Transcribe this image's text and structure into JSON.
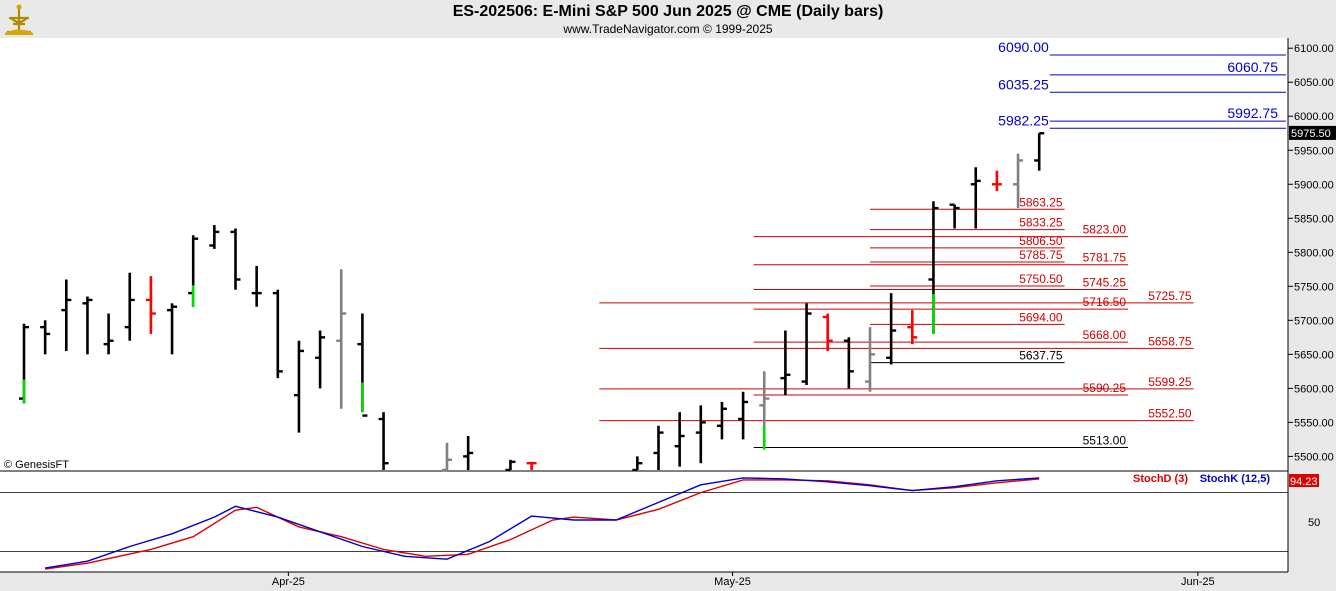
{
  "header": {
    "title": "ES-202506:  E-Mini S&P 500 Jun 2025 @ CME  (Daily bars)",
    "subtitle": "www.TradeNavigator.com © 1999-2025",
    "logo_icon": "navigator-logo-icon"
  },
  "colors": {
    "background": "#ffffff",
    "header_band": "#e9e9e9",
    "axis_panel": "#e8e8e8",
    "bar_up": "#000000",
    "bar_gray": "#808080",
    "bar_red": "#ff0000",
    "bar_green": "#00dd00",
    "level_red": "#cc0000",
    "level_blue": "#0000cc",
    "level_black": "#000000",
    "stoch_d": "#dd0000",
    "stoch_k": "#0000cc"
  },
  "chart_data": {
    "type": "ohlc",
    "title": "ES-202506:  E-Mini S&P 500 Jun 2025 @ CME  (Daily bars)",
    "copyright_label": "© GenesisFT",
    "y_axis": {
      "ylim": [
        5480,
        6115
      ],
      "ticks": [
        "5500.00",
        "5550.00",
        "5600.00",
        "5650.00",
        "5700.00",
        "5750.00",
        "5800.00",
        "5850.00",
        "5900.00",
        "5950.00",
        "6000.00",
        "6050.00",
        "6100.00"
      ],
      "last_price_label": "5975.50",
      "last_price": 5975.5
    },
    "x_axis": {
      "labels": [
        {
          "label": "Apr-25",
          "index": 12.5
        },
        {
          "label": "May-25",
          "index": 33.5
        },
        {
          "label": "Jun-25",
          "index": 55.5
        }
      ],
      "index_range": [
        0,
        61.5
      ]
    },
    "bars": [
      {
        "i": 0,
        "o": 5585,
        "h": 5695,
        "l": 5578,
        "c": 5690,
        "color": "black",
        "vol_tick": "green"
      },
      {
        "i": 1,
        "o": 5690,
        "h": 5700,
        "l": 5650,
        "c": 5680,
        "color": "black"
      },
      {
        "i": 2,
        "o": 5715,
        "h": 5760,
        "l": 5655,
        "c": 5730,
        "color": "black"
      },
      {
        "i": 3,
        "o": 5725,
        "h": 5735,
        "l": 5650,
        "c": 5730,
        "color": "black"
      },
      {
        "i": 4,
        "o": 5665,
        "h": 5710,
        "l": 5650,
        "c": 5670,
        "color": "black"
      },
      {
        "i": 5,
        "o": 5690,
        "h": 5770,
        "l": 5670,
        "c": 5730,
        "color": "black"
      },
      {
        "i": 6,
        "o": 5730,
        "h": 5765,
        "l": 5680,
        "c": 5710,
        "color": "red"
      },
      {
        "i": 7,
        "o": 5715,
        "h": 5725,
        "l": 5650,
        "c": 5720,
        "color": "black"
      },
      {
        "i": 8,
        "o": 5740,
        "h": 5825,
        "l": 5720,
        "c": 5820,
        "color": "black",
        "vol_tick": "green"
      },
      {
        "i": 9,
        "o": 5810,
        "h": 5840,
        "l": 5805,
        "c": 5830,
        "color": "black"
      },
      {
        "i": 10,
        "o": 5830,
        "h": 5835,
        "l": 5745,
        "c": 5760,
        "color": "black"
      },
      {
        "i": 11,
        "o": 5740,
        "h": 5780,
        "l": 5720,
        "c": 5740,
        "color": "black"
      },
      {
        "i": 12,
        "o": 5740,
        "h": 5745,
        "l": 5615,
        "c": 5625,
        "color": "black"
      },
      {
        "i": 13,
        "o": 5590,
        "h": 5670,
        "l": 5535,
        "c": 5655,
        "color": "black"
      },
      {
        "i": 14,
        "o": 5645,
        "h": 5685,
        "l": 5600,
        "c": 5675,
        "color": "black"
      },
      {
        "i": 15,
        "o": 5670,
        "h": 5775,
        "l": 5570,
        "c": 5710,
        "color": "gray"
      },
      {
        "i": 16,
        "o": 5665,
        "h": 5710,
        "l": 5565,
        "c": 5560,
        "color": "black",
        "vol_tick": "green"
      },
      {
        "i": 17,
        "o": 5555,
        "h": 5565,
        "l": 5480,
        "c": 5490,
        "color": "black"
      },
      {
        "i": 20,
        "o": 5480,
        "h": 5520,
        "l": 5480,
        "c": 5495,
        "color": "gray"
      },
      {
        "i": 21,
        "o": 5500,
        "h": 5530,
        "l": 5480,
        "c": 5505,
        "color": "black"
      },
      {
        "i": 23,
        "o": 5480,
        "h": 5495,
        "l": 5480,
        "c": 5492,
        "color": "black"
      },
      {
        "i": 24,
        "o": 5490,
        "h": 5492,
        "l": 5480,
        "c": 5490,
        "color": "red"
      },
      {
        "i": 29,
        "o": 5480,
        "h": 5500,
        "l": 5480,
        "c": 5490,
        "color": "black"
      },
      {
        "i": 30,
        "o": 5505,
        "h": 5545,
        "l": 5480,
        "c": 5535,
        "color": "black"
      },
      {
        "i": 31,
        "o": 5515,
        "h": 5565,
        "l": 5485,
        "c": 5530,
        "color": "black"
      },
      {
        "i": 32,
        "o": 5535,
        "h": 5575,
        "l": 5490,
        "c": 5550,
        "color": "black"
      },
      {
        "i": 33,
        "o": 5545,
        "h": 5580,
        "l": 5525,
        "c": 5570,
        "color": "black"
      },
      {
        "i": 34,
        "o": 5555,
        "h": 5595,
        "l": 5525,
        "c": 5580,
        "color": "black"
      },
      {
        "i": 35,
        "o": 5575,
        "h": 5625,
        "l": 5510,
        "c": 5585,
        "color": "gray",
        "vol_tick": "green"
      },
      {
        "i": 36,
        "o": 5615,
        "h": 5685,
        "l": 5590,
        "c": 5620,
        "color": "black"
      },
      {
        "i": 37,
        "o": 5610,
        "h": 5725,
        "l": 5605,
        "c": 5710,
        "color": "black"
      },
      {
        "i": 38,
        "o": 5705,
        "h": 5710,
        "l": 5655,
        "c": 5670,
        "color": "red"
      },
      {
        "i": 39,
        "o": 5670,
        "h": 5675,
        "l": 5600,
        "c": 5625,
        "color": "black"
      },
      {
        "i": 40,
        "o": 5610,
        "h": 5690,
        "l": 5595,
        "c": 5650,
        "color": "gray"
      },
      {
        "i": 41,
        "o": 5645,
        "h": 5740,
        "l": 5635,
        "c": 5685,
        "color": "black"
      },
      {
        "i": 42,
        "o": 5690,
        "h": 5715,
        "l": 5665,
        "c": 5675,
        "color": "red"
      },
      {
        "i": 43,
        "o": 5760,
        "h": 5875,
        "l": 5680,
        "c": 5865,
        "color": "black",
        "vol_tick": "green"
      },
      {
        "i": 44,
        "o": 5870,
        "h": 5870,
        "l": 5835,
        "c": 5865,
        "color": "black"
      },
      {
        "i": 45,
        "o": 5900,
        "h": 5925,
        "l": 5835,
        "c": 5905,
        "color": "black"
      },
      {
        "i": 46,
        "o": 5900,
        "h": 5920,
        "l": 5890,
        "c": 5900,
        "color": "red"
      },
      {
        "i": 47,
        "o": 5900,
        "h": 5945,
        "l": 5865,
        "c": 5935,
        "color": "gray"
      },
      {
        "i": 48,
        "o": 5935,
        "h": 5975,
        "l": 5920,
        "c": 5975,
        "color": "black"
      }
    ],
    "levels": [
      {
        "value": 6090.0,
        "label": "6090.00",
        "color": "blue",
        "x0": 48.5,
        "x1": 61.5,
        "label_side": "left-start"
      },
      {
        "value": 6060.75,
        "label": "6060.75",
        "color": "blue",
        "x0": 48.5,
        "x1": 61.5,
        "label_side": "right"
      },
      {
        "value": 6035.25,
        "label": "6035.25",
        "color": "blue",
        "x0": 48.5,
        "x1": 61.5,
        "label_side": "left-start"
      },
      {
        "value": 5992.75,
        "label": "5992.75",
        "color": "blue",
        "x0": 48.5,
        "x1": 61.5,
        "label_side": "right"
      },
      {
        "value": 5982.25,
        "label": "5982.25",
        "color": "blue",
        "x0": 48.5,
        "x1": 61.5,
        "label_side": "left-start"
      },
      {
        "value": 5863.25,
        "label": "5863.25",
        "color": "red",
        "x0": 40,
        "x1": 49.2,
        "label_side": "end"
      },
      {
        "value": 5833.25,
        "label": "5833.25",
        "color": "red",
        "x0": 40,
        "x1": 49.2,
        "label_side": "end"
      },
      {
        "value": 5823.0,
        "label": "5823.00",
        "color": "red",
        "x0": 34.5,
        "x1": 52.2,
        "label_side": "end"
      },
      {
        "value": 5806.5,
        "label": "5806.50",
        "color": "red",
        "x0": 40,
        "x1": 49.2,
        "label_side": "end"
      },
      {
        "value": 5785.75,
        "label": "5785.75",
        "color": "red",
        "x0": 40,
        "x1": 49.2,
        "label_side": "end"
      },
      {
        "value": 5781.75,
        "label": "5781.75",
        "color": "red",
        "x0": 34.5,
        "x1": 52.2,
        "label_side": "end"
      },
      {
        "value": 5750.5,
        "label": "5750.50",
        "color": "red",
        "x0": 40,
        "x1": 49.2,
        "label_side": "end"
      },
      {
        "value": 5745.25,
        "label": "5745.25",
        "color": "red",
        "x0": 34.5,
        "x1": 52.2,
        "label_side": "end"
      },
      {
        "value": 5725.75,
        "label": "5725.75",
        "color": "red",
        "x0": 27.2,
        "x1": 55.3,
        "label_side": "end"
      },
      {
        "value": 5716.5,
        "label": "5716.50",
        "color": "red",
        "x0": 34.5,
        "x1": 52.2,
        "label_side": "end"
      },
      {
        "value": 5694.0,
        "label": "5694.00",
        "color": "red",
        "x0": 40,
        "x1": 49.2,
        "label_side": "end"
      },
      {
        "value": 5668.0,
        "label": "5668.00",
        "color": "red",
        "x0": 34.5,
        "x1": 52.2,
        "label_side": "end"
      },
      {
        "value": 5658.75,
        "label": "5658.75",
        "color": "red",
        "x0": 27.2,
        "x1": 55.3,
        "label_side": "end"
      },
      {
        "value": 5637.75,
        "label": "5637.75",
        "color": "black",
        "x0": 40,
        "x1": 49.2,
        "label_side": "end"
      },
      {
        "value": 5599.25,
        "label": "5599.25",
        "color": "red",
        "x0": 27.2,
        "x1": 55.3,
        "label_side": "end"
      },
      {
        "value": 5590.25,
        "label": "5590.25",
        "color": "red",
        "x0": 34.5,
        "x1": 52.2,
        "label_side": "end"
      },
      {
        "value": 5552.5,
        "label": "5552.50",
        "color": "red",
        "x0": 27.2,
        "x1": 55.3,
        "label_side": "end"
      },
      {
        "value": 5513.0,
        "label": "5513.00",
        "color": "black",
        "x0": 34.5,
        "x1": 52.2,
        "label_side": "end"
      }
    ],
    "stochastic": {
      "legend": [
        {
          "name": "StochD (3)",
          "color": "#dd0000"
        },
        {
          "name": "StochK (12,5)",
          "color": "#0000cc"
        }
      ],
      "last_value_label": "94.23",
      "ylim": [
        0,
        100
      ],
      "reference_lines": [
        80,
        20
      ],
      "tick_labels": [
        "50"
      ],
      "series": [
        {
          "name": "StochD (3)",
          "color": "#dd0000",
          "points": [
            [
              1,
              2
            ],
            [
              3,
              8
            ],
            [
              6,
              22
            ],
            [
              8,
              35
            ],
            [
              10,
              62
            ],
            [
              11,
              65
            ],
            [
              13,
              45
            ],
            [
              15,
              35
            ],
            [
              17,
              22
            ],
            [
              19,
              15
            ],
            [
              21,
              17
            ],
            [
              23,
              32
            ],
            [
              25,
              52
            ],
            [
              26,
              55
            ],
            [
              28,
              52
            ],
            [
              30,
              63
            ],
            [
              32,
              80
            ],
            [
              34,
              93
            ],
            [
              36,
              93
            ],
            [
              38,
              92
            ],
            [
              40,
              88
            ],
            [
              42,
              82
            ],
            [
              44,
              85
            ],
            [
              46,
              90
            ],
            [
              48,
              94
            ]
          ]
        },
        {
          "name": "StochK (12,5)",
          "color": "#0000cc",
          "points": [
            [
              1,
              3
            ],
            [
              3,
              10
            ],
            [
              5,
              25
            ],
            [
              7,
              38
            ],
            [
              9,
              55
            ],
            [
              10,
              66
            ],
            [
              12,
              55
            ],
            [
              14,
              40
            ],
            [
              16,
              25
            ],
            [
              18,
              15
            ],
            [
              20,
              12
            ],
            [
              22,
              30
            ],
            [
              24,
              56
            ],
            [
              26,
              52
            ],
            [
              28,
              52
            ],
            [
              30,
              70
            ],
            [
              32,
              88
            ],
            [
              34,
              95
            ],
            [
              36,
              94
            ],
            [
              38,
              91
            ],
            [
              40,
              87
            ],
            [
              42,
              82
            ],
            [
              44,
              86
            ],
            [
              46,
              92
            ],
            [
              48,
              95
            ]
          ]
        }
      ]
    }
  }
}
